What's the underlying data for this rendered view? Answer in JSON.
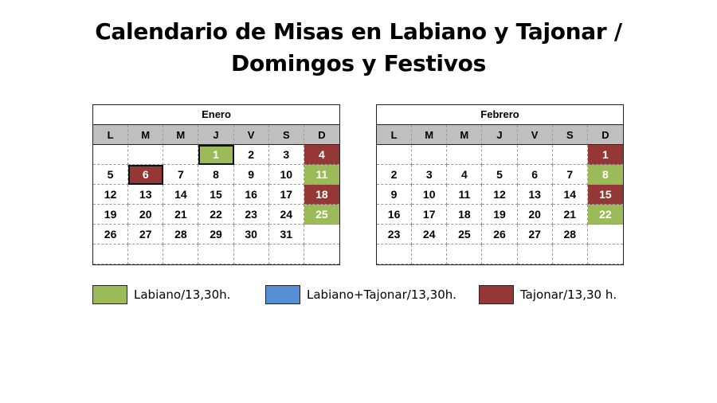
{
  "title": {
    "line1": "Calendario de Misas en Labiano y Tajonar /",
    "line2": "Domingos y Festivos"
  },
  "colors": {
    "green": "#9bbb59",
    "blue": "#558ed5",
    "red": "#953735",
    "header_gray": "#bfbfbf"
  },
  "weekdays": [
    "L",
    "M",
    "M",
    "J",
    "V",
    "S",
    "D"
  ],
  "calendars": [
    {
      "month": "Enero",
      "weeks": [
        [
          {
            "d": ""
          },
          {
            "d": ""
          },
          {
            "d": ""
          },
          {
            "d": "1",
            "c": "green",
            "b": true
          },
          {
            "d": "2"
          },
          {
            "d": "3"
          },
          {
            "d": "4",
            "c": "red"
          }
        ],
        [
          {
            "d": "5"
          },
          {
            "d": "6",
            "c": "red",
            "b": true
          },
          {
            "d": "7"
          },
          {
            "d": "8"
          },
          {
            "d": "9"
          },
          {
            "d": "10"
          },
          {
            "d": "11",
            "c": "green"
          }
        ],
        [
          {
            "d": "12"
          },
          {
            "d": "13"
          },
          {
            "d": "14"
          },
          {
            "d": "15"
          },
          {
            "d": "16"
          },
          {
            "d": "17"
          },
          {
            "d": "18",
            "c": "red"
          }
        ],
        [
          {
            "d": "19"
          },
          {
            "d": "20"
          },
          {
            "d": "21"
          },
          {
            "d": "22"
          },
          {
            "d": "23"
          },
          {
            "d": "24"
          },
          {
            "d": "25",
            "c": "green"
          }
        ],
        [
          {
            "d": "26"
          },
          {
            "d": "27"
          },
          {
            "d": "28"
          },
          {
            "d": "29"
          },
          {
            "d": "30"
          },
          {
            "d": "31"
          },
          {
            "d": ""
          }
        ],
        [
          {
            "d": ""
          },
          {
            "d": ""
          },
          {
            "d": ""
          },
          {
            "d": ""
          },
          {
            "d": ""
          },
          {
            "d": ""
          },
          {
            "d": ""
          }
        ]
      ]
    },
    {
      "month": "Febrero",
      "weeks": [
        [
          {
            "d": ""
          },
          {
            "d": ""
          },
          {
            "d": ""
          },
          {
            "d": ""
          },
          {
            "d": ""
          },
          {
            "d": ""
          },
          {
            "d": "1",
            "c": "red"
          }
        ],
        [
          {
            "d": "2"
          },
          {
            "d": "3"
          },
          {
            "d": "4"
          },
          {
            "d": "5"
          },
          {
            "d": "6"
          },
          {
            "d": "7"
          },
          {
            "d": "8",
            "c": "green"
          }
        ],
        [
          {
            "d": "9"
          },
          {
            "d": "10"
          },
          {
            "d": "11"
          },
          {
            "d": "12"
          },
          {
            "d": "13"
          },
          {
            "d": "14"
          },
          {
            "d": "15",
            "c": "red"
          }
        ],
        [
          {
            "d": "16"
          },
          {
            "d": "17"
          },
          {
            "d": "18"
          },
          {
            "d": "19"
          },
          {
            "d": "20"
          },
          {
            "d": "21"
          },
          {
            "d": "22",
            "c": "green"
          }
        ],
        [
          {
            "d": "23"
          },
          {
            "d": "24"
          },
          {
            "d": "25"
          },
          {
            "d": "26"
          },
          {
            "d": "27"
          },
          {
            "d": "28"
          },
          {
            "d": ""
          }
        ],
        [
          {
            "d": ""
          },
          {
            "d": ""
          },
          {
            "d": ""
          },
          {
            "d": ""
          },
          {
            "d": ""
          },
          {
            "d": ""
          },
          {
            "d": ""
          }
        ]
      ]
    }
  ],
  "legend": [
    {
      "label": "Labiano/13,30h.",
      "color": "#9bbb59"
    },
    {
      "label": "Labiano+Tajonar/13,30h.",
      "color": "#558ed5"
    },
    {
      "label": "Tajonar/13,30 h.",
      "color": "#953735"
    }
  ]
}
